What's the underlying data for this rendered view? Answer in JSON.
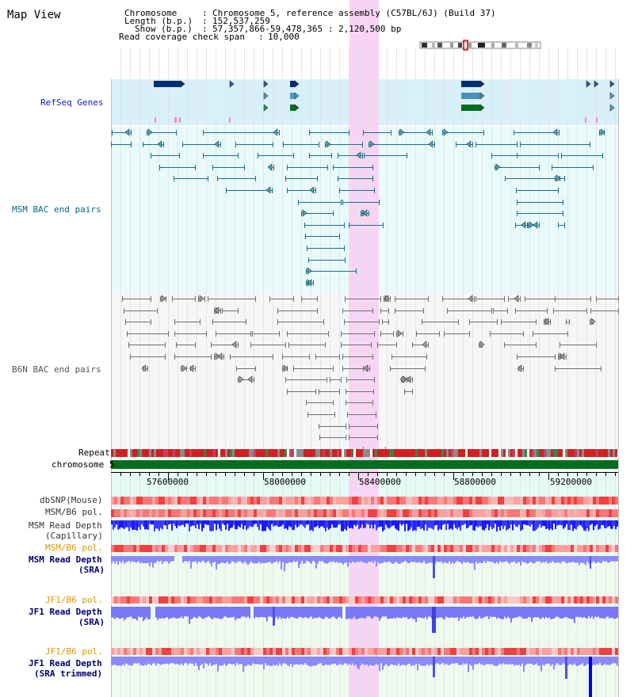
{
  "window_title": "Map View",
  "info": {
    "chromosome_key": "Chromosome",
    "chromosome_value": "Chromosome 5, reference assembly (C57BL/6J) (Build 37)",
    "length_key": "Length (b.p.)",
    "length_value": "152,537,259",
    "show_key": "Show (b.p.)",
    "show_value": "57,357,866-59,478,365 : 2,120,500 bp",
    "coverage_key": "Read coverage check span",
    "coverage_value": "10,000"
  },
  "tracks": {
    "refseq": "RefSeq Genes",
    "msm_bac": "MSM BAC end pairs",
    "b6n_bac": "B6N BAC end pairs",
    "repeat": "Repeat",
    "chromosome": "chromosome 5",
    "dbsnp": "dbSNP(Mouse)",
    "msm_b6_pol_1": "MSM/B6 pol.",
    "msm_depth_cap_1": "MSM Read Depth",
    "msm_depth_cap_2": "(Capillary)",
    "msm_b6_pol_2": "MSM/B6 pol.",
    "msm_depth_sra_1": "MSM Read Depth",
    "msm_depth_sra_2": "(SRA)",
    "jf1_pol_1": "JF1/B6 pol.",
    "jf1_depth_sra_1": "JF1 Read Depth",
    "jf1_depth_sra_2": "(SRA)",
    "jf1_pol_2": "JF1/B6 pol.",
    "jf1_depth_trim_1": "JF1 Read Depth",
    "jf1_depth_trim_2": "(SRA trimmed)"
  },
  "axis": {
    "ticks": [
      "57600000",
      "58000000",
      "58400000",
      "58800000",
      "59200000"
    ]
  },
  "colors": {
    "refseq_band": "#d8f0fa",
    "bac_band": "#e8fafa",
    "b6n_band": "#f4f6f8",
    "highlight": "#f8d4f4",
    "msm_line": "#1c6e8c",
    "b6n_line": "#707070",
    "chrom_green": "#006e1e",
    "repeat_red": "#d22020",
    "depth_blue": "#2020e0",
    "depth_light": "#7878f8",
    "navy": "#00006e",
    "orange": "#e09600"
  }
}
